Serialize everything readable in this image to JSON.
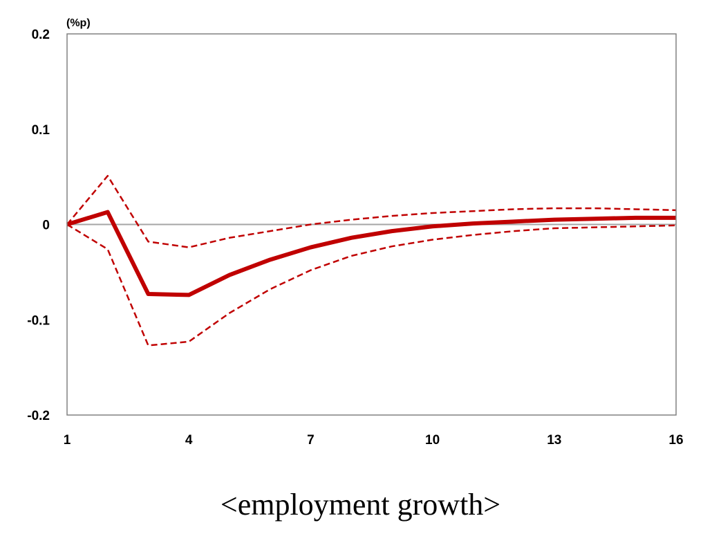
{
  "chart_data": {
    "type": "line",
    "title": "",
    "unit_label": "(%p)",
    "xlabel": "",
    "ylabel": "",
    "x": [
      1,
      2,
      3,
      4,
      5,
      6,
      7,
      8,
      9,
      10,
      11,
      12,
      13,
      14,
      15,
      16
    ],
    "xlim": [
      1,
      16
    ],
    "ylim": [
      -0.2,
      0.2
    ],
    "x_ticks": [
      1,
      4,
      7,
      10,
      13,
      16
    ],
    "y_ticks": [
      0.2,
      0.1,
      0,
      -0.1,
      -0.2
    ],
    "x_tick_labels": [
      "1",
      "4",
      "7",
      "10",
      "13",
      "16"
    ],
    "y_tick_labels": [
      "0.2",
      "0.1",
      "0",
      "-0.1",
      "-0.2"
    ],
    "grid": false,
    "zero_line": true,
    "legend": "none",
    "series": [
      {
        "role": "estimate",
        "style": "solid",
        "values": [
          0,
          0.013,
          -0.073,
          -0.074,
          -0.053,
          -0.037,
          -0.024,
          -0.014,
          -0.007,
          -0.002,
          0.001,
          0.003,
          0.005,
          0.006,
          0.007,
          0.007
        ]
      },
      {
        "role": "upper-band",
        "style": "dashed",
        "values": [
          0,
          0.051,
          -0.018,
          -0.024,
          -0.014,
          -0.007,
          0.0,
          0.005,
          0.009,
          0.012,
          0.014,
          0.016,
          0.017,
          0.017,
          0.016,
          0.015
        ]
      },
      {
        "role": "lower-band",
        "style": "dashed",
        "values": [
          0,
          -0.026,
          -0.127,
          -0.123,
          -0.093,
          -0.068,
          -0.048,
          -0.033,
          -0.023,
          -0.016,
          -0.011,
          -0.007,
          -0.004,
          -0.003,
          -0.002,
          -0.001
        ]
      }
    ],
    "colors": {
      "series": "#c00000",
      "zero_line": "#a6a6a6",
      "axes": "#808080"
    }
  },
  "caption": "<employment growth>"
}
